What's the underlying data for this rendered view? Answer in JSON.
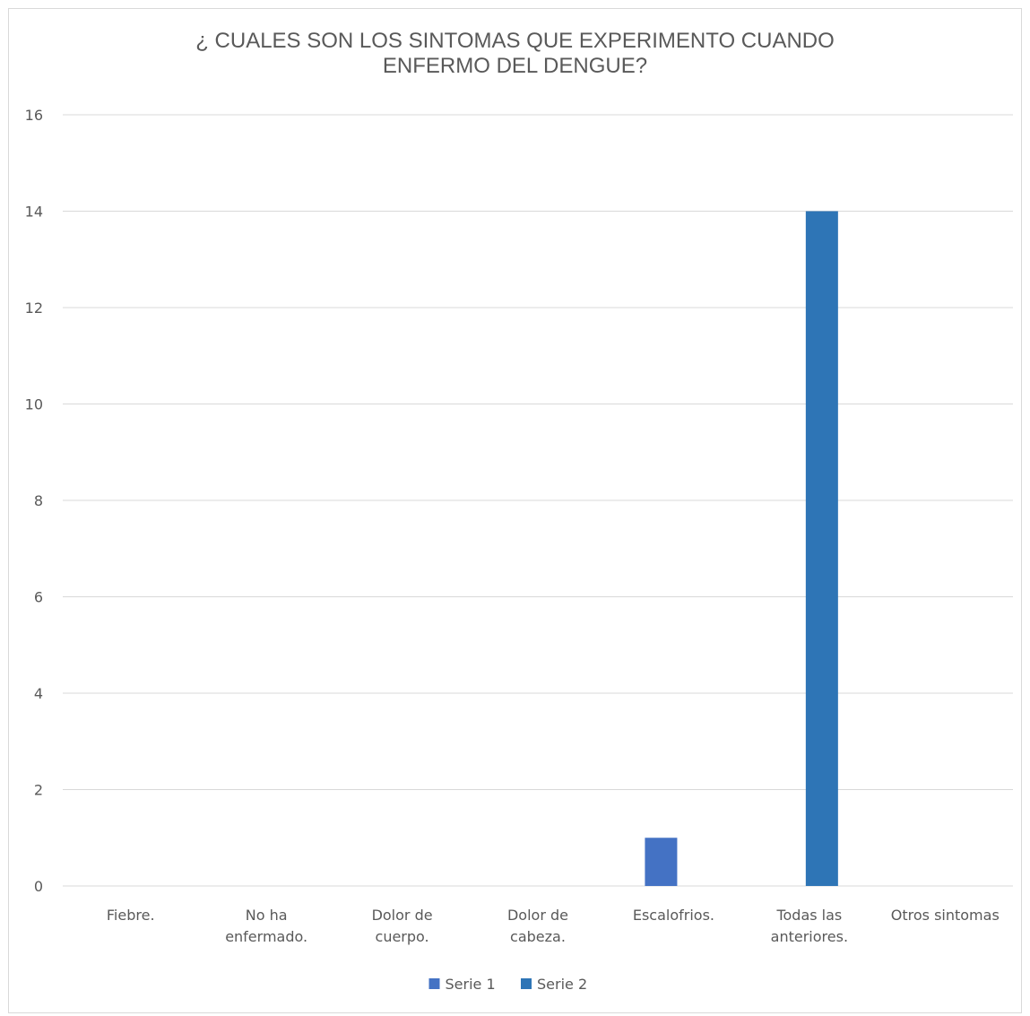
{
  "chart_data": {
    "type": "bar",
    "title": "¿ CUALES SON LOS SINTOMAS QUE EXPERIMENTO CUANDO\nENFERMO DEL DENGUE?",
    "xlabel": "",
    "ylabel": "",
    "categories": [
      [
        "Fiebre."
      ],
      [
        "No ha",
        "enfermado."
      ],
      [
        "Dolor de",
        "cuerpo."
      ],
      [
        "Dolor de",
        "cabeza."
      ],
      [
        "Escalofrios."
      ],
      [
        "Todas las",
        "anteriores."
      ],
      [
        "Otros sintomas"
      ]
    ],
    "series": [
      {
        "name": "Serie 1",
        "color": "#4472c4",
        "values": [
          0,
          0,
          0,
          0,
          1,
          0,
          0
        ]
      },
      {
        "name": "Serie 2",
        "color": "#2e75b6",
        "values": [
          0,
          0,
          0,
          0,
          0,
          14,
          0
        ]
      }
    ],
    "ylim": [
      0,
      16
    ],
    "yticks": [
      0,
      2,
      4,
      6,
      8,
      10,
      12,
      14,
      16
    ],
    "grid": true,
    "legend_position": "bottom",
    "gridline_color": "#d9d9d9"
  }
}
